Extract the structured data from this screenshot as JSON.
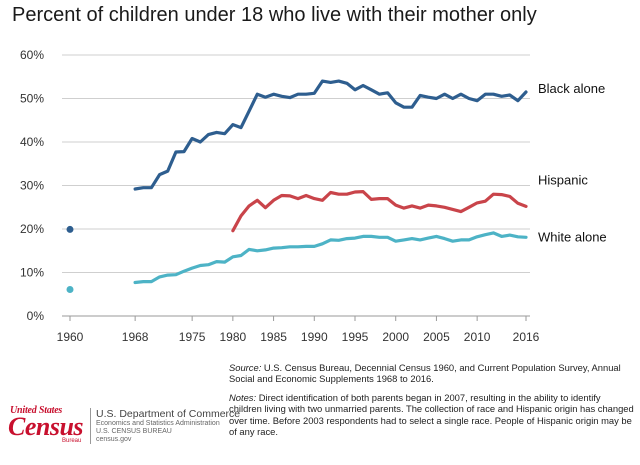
{
  "chart_data": {
    "type": "line",
    "title": "Percent of children under 18 who live with their mother only",
    "ylim": [
      0,
      60
    ],
    "y_ticks": [
      "0%",
      "10%",
      "20%",
      "30%",
      "40%",
      "50%",
      "60%"
    ],
    "x_ticks": [
      "1960",
      "1968",
      "1975",
      "1980",
      "1985",
      "1990",
      "1995",
      "2000",
      "2005",
      "2010",
      "2016"
    ],
    "grid": true,
    "series": [
      {
        "name": "Black alone",
        "color": "#2e5e8f",
        "points": [
          [
            1960,
            19.9
          ]
        ],
        "x": [
          1968,
          1969,
          1970,
          1971,
          1972,
          1973,
          1974,
          1975,
          1976,
          1977,
          1978,
          1979,
          1980,
          1981,
          1982,
          1983,
          1984,
          1985,
          1986,
          1987,
          1988,
          1989,
          1990,
          1991,
          1992,
          1993,
          1994,
          1995,
          1996,
          1997,
          1998,
          1999,
          2000,
          2001,
          2002,
          2003,
          2004,
          2005,
          2006,
          2007,
          2008,
          2009,
          2010,
          2011,
          2012,
          2013,
          2014,
          2015,
          2016
        ],
        "values": [
          29.2,
          29.5,
          29.5,
          32.5,
          33.3,
          37.7,
          37.8,
          40.8,
          40.0,
          41.7,
          42.2,
          41.9,
          44.0,
          43.3,
          47.1,
          51.0,
          50.3,
          51.0,
          50.5,
          50.2,
          51.0,
          51.0,
          51.2,
          54.0,
          53.7,
          54.0,
          53.5,
          52.0,
          53.0,
          52.0,
          51.0,
          51.3,
          49.0,
          48.0,
          48.0,
          50.7,
          50.3,
          50.0,
          51.0,
          50.0,
          51.0,
          50.0,
          49.5,
          51.0,
          51.0,
          50.5,
          50.8,
          49.5,
          51.5
        ]
      },
      {
        "name": "Hispanic",
        "color": "#c9444a",
        "x": [
          1980,
          1981,
          1982,
          1983,
          1984,
          1985,
          1986,
          1987,
          1988,
          1989,
          1990,
          1991,
          1992,
          1993,
          1994,
          1995,
          1996,
          1997,
          1998,
          1999,
          2000,
          2001,
          2002,
          2003,
          2004,
          2005,
          2006,
          2007,
          2008,
          2009,
          2010,
          2011,
          2012,
          2013,
          2014,
          2015,
          2016
        ],
        "values": [
          19.6,
          23.0,
          25.3,
          26.6,
          24.9,
          26.6,
          27.7,
          27.6,
          27.0,
          27.7,
          27.0,
          26.6,
          28.4,
          28.0,
          28.0,
          28.5,
          28.6,
          26.8,
          27.0,
          27.0,
          25.5,
          24.8,
          25.3,
          24.8,
          25.5,
          25.3,
          25.0,
          24.5,
          24.0,
          25.0,
          26.0,
          26.4,
          28.0,
          27.9,
          27.5,
          25.9,
          25.2
        ]
      },
      {
        "name": "White alone",
        "color": "#4db3c6",
        "points": [
          [
            1960,
            6.1
          ]
        ],
        "x": [
          1968,
          1969,
          1970,
          1971,
          1972,
          1973,
          1974,
          1975,
          1976,
          1977,
          1978,
          1979,
          1980,
          1981,
          1982,
          1983,
          1984,
          1985,
          1986,
          1987,
          1988,
          1989,
          1990,
          1991,
          1992,
          1993,
          1994,
          1995,
          1996,
          1997,
          1998,
          1999,
          2000,
          2001,
          2002,
          2003,
          2004,
          2005,
          2006,
          2007,
          2008,
          2009,
          2010,
          2011,
          2012,
          2013,
          2014,
          2015,
          2016
        ],
        "values": [
          7.7,
          7.9,
          7.9,
          9.0,
          9.4,
          9.5,
          10.3,
          11.0,
          11.6,
          11.8,
          12.5,
          12.4,
          13.6,
          13.9,
          15.3,
          15.0,
          15.2,
          15.6,
          15.7,
          15.9,
          15.9,
          16.0,
          16.0,
          16.6,
          17.5,
          17.4,
          17.8,
          17.9,
          18.3,
          18.3,
          18.1,
          18.1,
          17.2,
          17.5,
          17.8,
          17.5,
          17.9,
          18.3,
          17.8,
          17.2,
          17.5,
          17.5,
          18.2,
          18.7,
          19.1,
          18.3,
          18.6,
          18.2,
          18.1
        ]
      }
    ]
  },
  "source": {
    "label": "Source:",
    "text": " U.S. Census Bureau, Decennial Census 1960, and Current Population Survey, Annual Social and Economic Supplements 1968 to 2016."
  },
  "notes": {
    "label": "Notes:",
    "text": " Direct identification of both parents began in 2007, resulting in the ability to identify children living with two unmarried parents. The collection of race and Hispanic origin has changed over time. Before 2003 respondents had to select a single race. People of Hispanic origin may be of any race."
  },
  "footer": {
    "logo_top": "United States",
    "logo_main": "Census",
    "logo_bureau": "Bureau",
    "dept": "U.S. Department of Commerce",
    "line1": "Economics and Statistics Administration",
    "line2": "U.S. CENSUS BUREAU",
    "line3": "census.gov"
  }
}
